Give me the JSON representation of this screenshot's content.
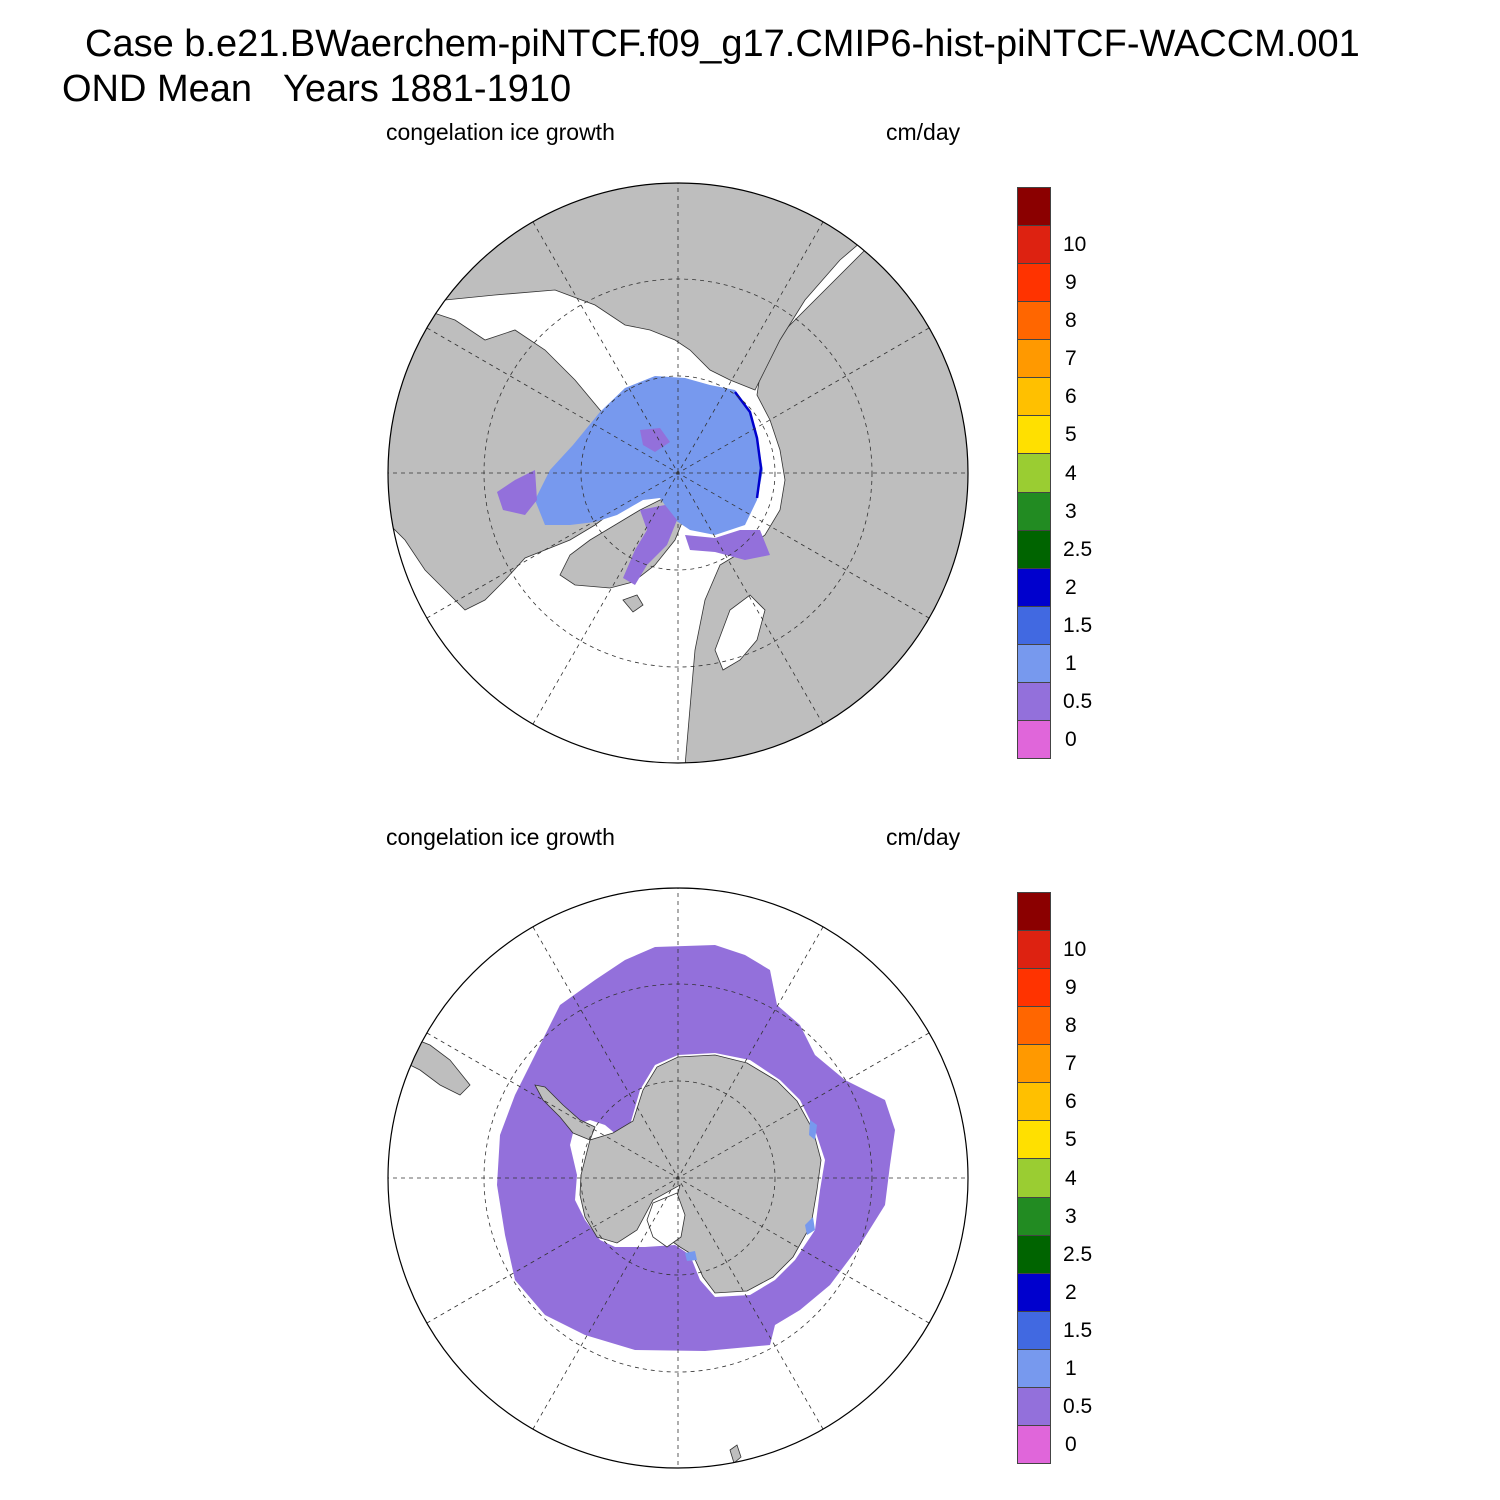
{
  "title": {
    "line1": "Case b.e21.BWaerchem-piNTCF.f09_g17.CMIP6-hist-piNTCF-WACCM.001",
    "line2": "OND Mean   Years 1881-1910"
  },
  "panels": [
    {
      "hemisphere": "north",
      "field_label": "congelation ice growth",
      "units_label": "cm/day",
      "ice_extent_lat": 70,
      "dominant_class": "0.5-1",
      "secondary_class": "0-0.5"
    },
    {
      "hemisphere": "south",
      "field_label": "congelation ice growth",
      "units_label": "cm/day",
      "ice_extent_lat": -58,
      "dominant_class": "0-0.5",
      "secondary_class": "0.5-1"
    }
  ],
  "colorbar": {
    "levels": [
      "0",
      "0.5",
      "1",
      "1.5",
      "2",
      "2.5",
      "3",
      "4",
      "5",
      "6",
      "7",
      "8",
      "9",
      "10"
    ],
    "colors": [
      "#E066DA",
      "#9370DB",
      "#7799EE",
      "#4169E1",
      "#0000CD",
      "#006400",
      "#228B22",
      "#9ACD32",
      "#FFE000",
      "#FFC000",
      "#FF9900",
      "#FF6600",
      "#FF3300",
      "#DD2211",
      "#8B0000"
    ]
  },
  "map_colors": {
    "land": "#BEBEBE",
    "ocean": "#FFFFFF",
    "grid": "#333333"
  }
}
